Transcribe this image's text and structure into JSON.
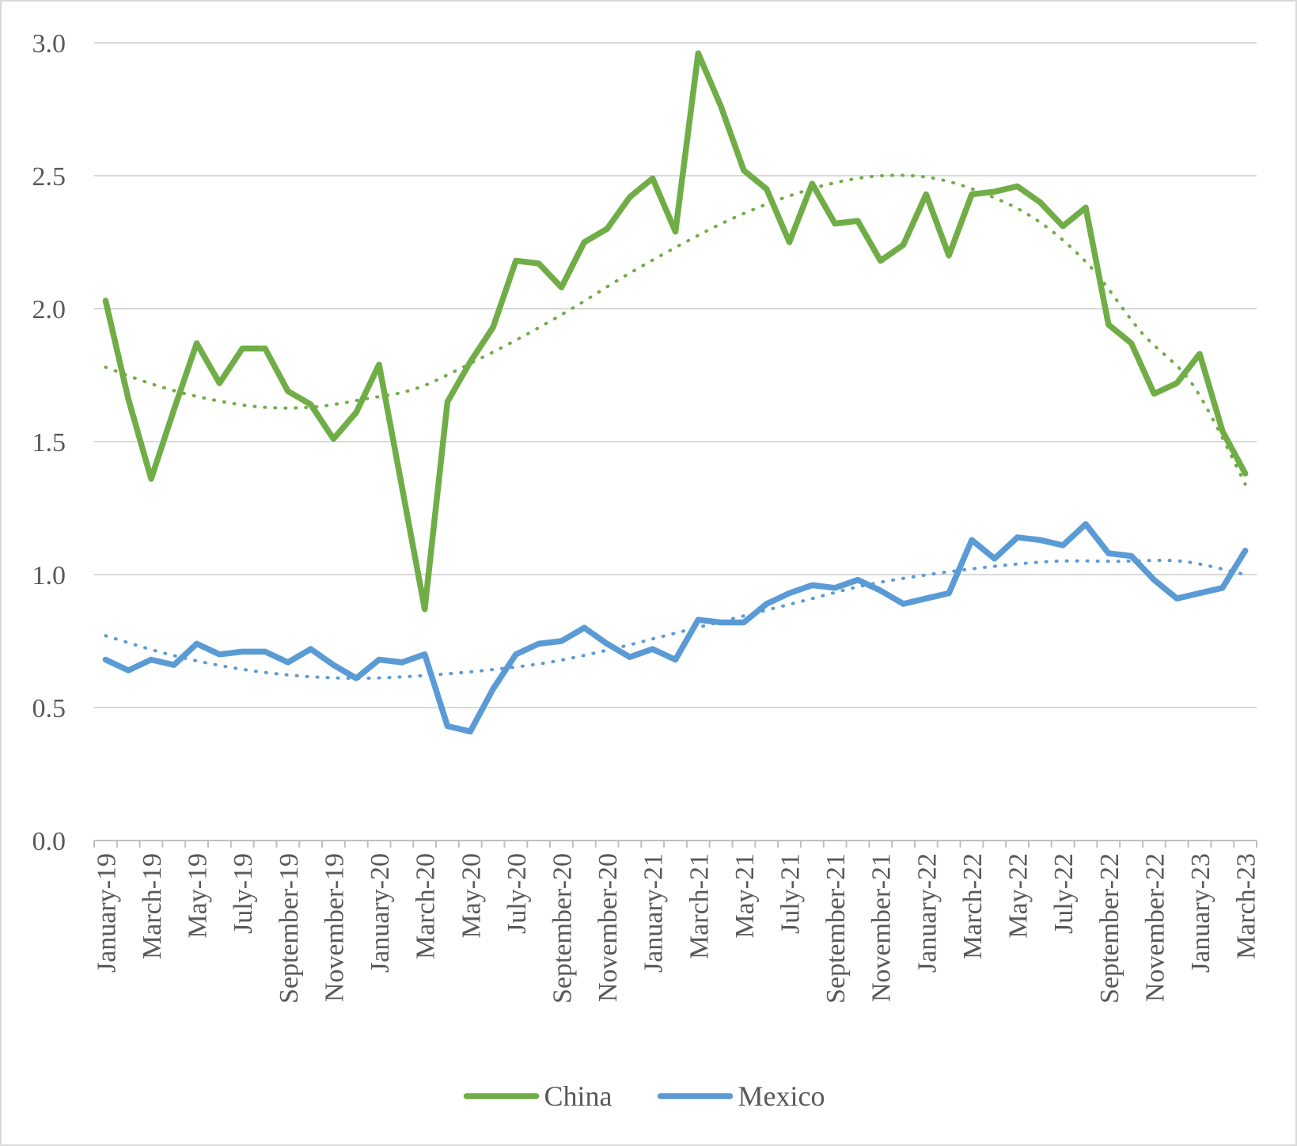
{
  "chart_data": {
    "type": "line",
    "title": "",
    "xlabel": "",
    "ylabel": "",
    "ylim": [
      0,
      3
    ],
    "yticks": [
      "0.0",
      "0.5",
      "1.0",
      "1.5",
      "2.0",
      "2.5",
      "3.0"
    ],
    "grid": true,
    "legend_position": "bottom-center",
    "categories": [
      "January-19",
      "February-19",
      "March-19",
      "April-19",
      "May-19",
      "June-19",
      "July-19",
      "August-19",
      "September-19",
      "October-19",
      "November-19",
      "December-19",
      "January-20",
      "February-20",
      "March-20",
      "April-20",
      "May-20",
      "June-20",
      "July-20",
      "August-20",
      "September-20",
      "October-20",
      "November-20",
      "December-20",
      "January-21",
      "February-21",
      "March-21",
      "April-21",
      "May-21",
      "June-21",
      "July-21",
      "August-21",
      "September-21",
      "October-21",
      "November-21",
      "December-21",
      "January-22",
      "February-22",
      "March-22",
      "April-22",
      "May-22",
      "June-22",
      "July-22",
      "August-22",
      "September-22",
      "October-22",
      "November-22",
      "December-22",
      "January-23",
      "February-23",
      "March-23"
    ],
    "tick_labels": [
      "January-19",
      "March-19",
      "May-19",
      "July-19",
      "September-19",
      "November-19",
      "January-20",
      "March-20",
      "May-20",
      "July-20",
      "September-20",
      "November-20",
      "January-21",
      "March-21",
      "May-21",
      "July-21",
      "September-21",
      "November-21",
      "January-22",
      "March-22",
      "May-22",
      "July-22",
      "September-22",
      "November-22",
      "January-23",
      "March-23"
    ],
    "series": [
      {
        "name": "China",
        "color": "#70ad47",
        "values": [
          2.03,
          1.66,
          1.36,
          1.62,
          1.87,
          1.72,
          1.85,
          1.85,
          1.69,
          1.64,
          1.51,
          1.61,
          1.79,
          1.33,
          0.87,
          1.65,
          1.8,
          1.93,
          2.18,
          2.17,
          2.08,
          2.25,
          2.3,
          2.42,
          2.49,
          2.29,
          2.96,
          2.76,
          2.52,
          2.45,
          2.25,
          2.47,
          2.32,
          2.33,
          2.18,
          2.24,
          2.43,
          2.2,
          2.43,
          2.44,
          2.46,
          2.4,
          2.31,
          2.38,
          1.94,
          1.87,
          1.68,
          1.72,
          1.83,
          1.54,
          1.38
        ],
        "trendline": {
          "type": "polynomial",
          "style": "dotted",
          "values": [
            1.78,
            1.71,
            1.66,
            1.63,
            1.63,
            1.66,
            1.7,
            1.79,
            1.89,
            2.0,
            2.12,
            2.23,
            2.33,
            2.41,
            2.47,
            2.5,
            2.49,
            2.43,
            2.33,
            2.16,
            1.91,
            1.71,
            1.34
          ]
        }
      },
      {
        "name": "Mexico",
        "color": "#5b9bd5",
        "values": [
          0.68,
          0.64,
          0.68,
          0.66,
          0.74,
          0.7,
          0.71,
          0.71,
          0.67,
          0.72,
          0.66,
          0.61,
          0.68,
          0.67,
          0.7,
          0.43,
          0.41,
          0.57,
          0.7,
          0.74,
          0.75,
          0.8,
          0.74,
          0.69,
          0.72,
          0.68,
          0.83,
          0.82,
          0.82,
          0.89,
          0.93,
          0.96,
          0.95,
          0.98,
          0.94,
          0.89,
          0.91,
          0.93,
          1.13,
          1.06,
          1.14,
          1.13,
          1.11,
          1.19,
          1.08,
          1.07,
          0.98,
          0.91,
          0.93,
          0.95,
          1.09
        ],
        "trendline": {
          "type": "polynomial",
          "style": "dotted",
          "values": [
            0.77,
            0.7,
            0.65,
            0.62,
            0.61,
            0.62,
            0.64,
            0.67,
            0.72,
            0.78,
            0.84,
            0.9,
            0.96,
            1.0,
            1.03,
            1.05,
            1.05,
            1.05,
            1.0
          ]
        }
      }
    ]
  }
}
